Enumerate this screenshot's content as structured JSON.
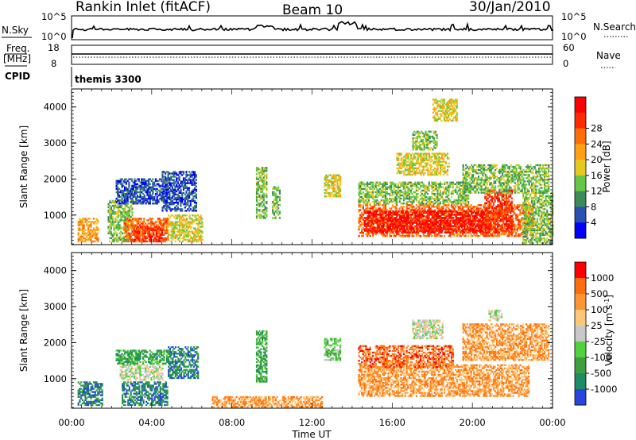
{
  "header": {
    "station": "Rankin Inlet (fitACF)",
    "beam": "Beam 10",
    "date": "30/Jan/2010"
  },
  "status_panels": {
    "nsky_label": "N.Sky",
    "nsearch_label": "N.Search",
    "nsky_ticks": [
      "10^5",
      "10^0"
    ],
    "freq_label": "Freq.",
    "freq_unit": "[MHz]",
    "freq_ticks": [
      "18",
      "8"
    ],
    "nave_label": "Nave",
    "nave_ticks": [
      "60",
      "0"
    ],
    "cpid_label": "CPID",
    "cpid_value": "themis 3300"
  },
  "chart_data": [
    {
      "type": "heatmap",
      "name": "Power",
      "ylabel": "Slant Range [km]",
      "yticks": [
        1000,
        2000,
        3000,
        4000
      ],
      "ylim": [
        180,
        4500
      ],
      "xlim_hours": [
        0,
        24
      ],
      "colorbar": {
        "label": "Power [dB]",
        "ticks": [
          "4",
          "8",
          "12",
          "16",
          "20",
          "24",
          "28"
        ],
        "colors": [
          "#0000ff",
          "#2a50b4",
          "#3c8c5a",
          "#64c846",
          "#e6c81e",
          "#ffa014",
          "#ff6e0a",
          "#ff2a00",
          "#ff0000"
        ]
      },
      "regions": [
        {
          "t": [
            0.3,
            1.3
          ],
          "r": [
            250,
            900
          ],
          "level": 5
        },
        {
          "t": [
            1.8,
            3.0
          ],
          "r": [
            250,
            1400
          ],
          "level": 3
        },
        {
          "t": [
            2.6,
            4.8
          ],
          "r": [
            250,
            900
          ],
          "level": 6
        },
        {
          "t": [
            3.0,
            4.5
          ],
          "r": [
            250,
            700
          ],
          "level": 7
        },
        {
          "t": [
            2.2,
            4.8
          ],
          "r": [
            1300,
            2000
          ],
          "level": 1
        },
        {
          "t": [
            4.5,
            6.2
          ],
          "r": [
            1100,
            2200
          ],
          "level": 1
        },
        {
          "t": [
            4.8,
            6.5
          ],
          "r": [
            250,
            1000
          ],
          "level": 4
        },
        {
          "t": [
            9.2,
            9.7
          ],
          "r": [
            900,
            2300
          ],
          "level": 3
        },
        {
          "t": [
            10.0,
            10.4
          ],
          "r": [
            900,
            1800
          ],
          "level": 3
        },
        {
          "t": [
            12.6,
            13.4
          ],
          "r": [
            1500,
            2100
          ],
          "level": 4
        },
        {
          "t": [
            14.3,
            23.0
          ],
          "r": [
            400,
            1300
          ],
          "level": 6
        },
        {
          "t": [
            14.6,
            20.8
          ],
          "r": [
            500,
            1100
          ],
          "level": 8
        },
        {
          "t": [
            20.6,
            22.0
          ],
          "r": [
            500,
            1700
          ],
          "level": 7
        },
        {
          "t": [
            14.3,
            19.8
          ],
          "r": [
            1300,
            1900
          ],
          "level": 3
        },
        {
          "t": [
            16.2,
            18.8
          ],
          "r": [
            2100,
            2700
          ],
          "level": 4
        },
        {
          "t": [
            17.0,
            18.2
          ],
          "r": [
            2800,
            3300
          ],
          "level": 3
        },
        {
          "t": [
            19.5,
            23.8
          ],
          "r": [
            1600,
            2400
          ],
          "level": 3
        },
        {
          "t": [
            18.0,
            19.2
          ],
          "r": [
            3600,
            4200
          ],
          "level": 4
        },
        {
          "t": [
            22.5,
            24.0
          ],
          "r": [
            200,
            1600
          ],
          "level": 3
        }
      ]
    },
    {
      "type": "heatmap",
      "name": "Velocity",
      "ylabel": "Slant Range [km]",
      "yticks": [
        1000,
        2000,
        3000,
        4000
      ],
      "ylim": [
        180,
        4500
      ],
      "xlim_hours": [
        0,
        24
      ],
      "xticks": [
        "00:00",
        "04:00",
        "08:00",
        "12:00",
        "16:00",
        "20:00",
        "00:00"
      ],
      "xlabel": "Time UT",
      "colorbar": {
        "label": "Velocity [m s-1]",
        "ticks": [
          "1000",
          "500",
          "100",
          "25",
          "-25",
          "-100",
          "-500",
          "-1000"
        ],
        "colors": [
          "#2846dc",
          "#1e8c64",
          "#3ca03c",
          "#50d23c",
          "#c8c8c8",
          "#ffc878",
          "#ff9632",
          "#ff6e0a",
          "#ff0000"
        ]
      },
      "regions": [
        {
          "t": [
            0.3,
            1.5
          ],
          "r": [
            250,
            900
          ],
          "level": 1
        },
        {
          "t": [
            2.5,
            4.8
          ],
          "r": [
            250,
            900
          ],
          "level": 1
        },
        {
          "t": [
            2.4,
            4.5
          ],
          "r": [
            950,
            1400
          ],
          "level": 4
        },
        {
          "t": [
            2.2,
            4.8
          ],
          "r": [
            1400,
            1800
          ],
          "level": 2
        },
        {
          "t": [
            4.8,
            6.3
          ],
          "r": [
            1000,
            1900
          ],
          "level": 1
        },
        {
          "t": [
            9.2,
            9.7
          ],
          "r": [
            900,
            2300
          ],
          "level": 2
        },
        {
          "t": [
            12.6,
            13.4
          ],
          "r": [
            1500,
            2100
          ],
          "level": 3
        },
        {
          "t": [
            14.3,
            22.8
          ],
          "r": [
            500,
            1400
          ],
          "level": 6
        },
        {
          "t": [
            14.3,
            19.0
          ],
          "r": [
            1300,
            1900
          ],
          "level": 7
        },
        {
          "t": [
            17.0,
            18.5
          ],
          "r": [
            2100,
            2600
          ],
          "level": 4
        },
        {
          "t": [
            19.5,
            23.8
          ],
          "r": [
            1500,
            2500
          ],
          "level": 6
        },
        {
          "t": [
            20.8,
            21.5
          ],
          "r": [
            2600,
            2900
          ],
          "level": 4
        },
        {
          "t": [
            7.0,
            12.5
          ],
          "r": [
            200,
            500
          ],
          "level": 6
        }
      ]
    }
  ]
}
